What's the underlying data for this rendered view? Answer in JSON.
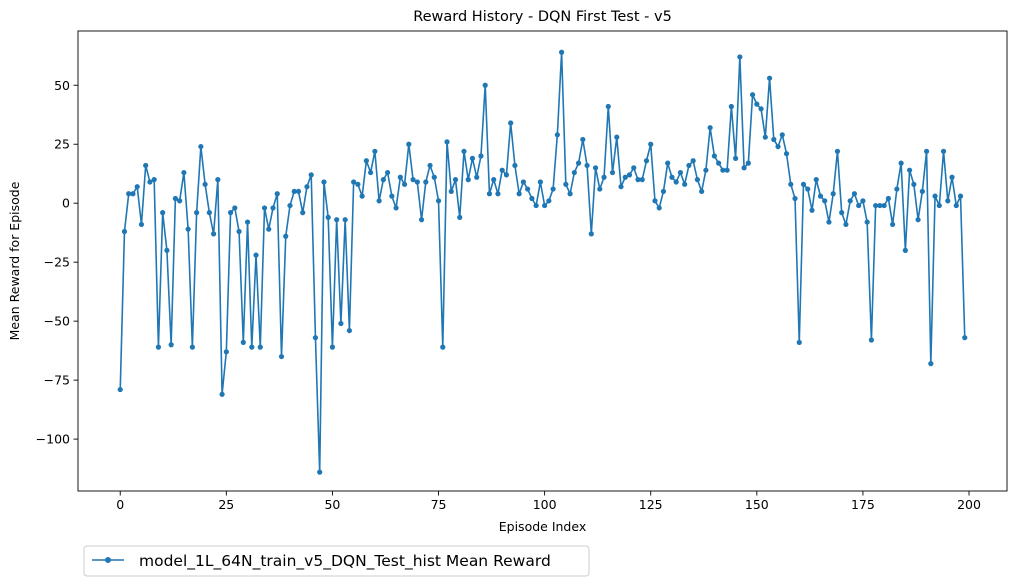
{
  "chart_data": {
    "type": "line",
    "title": "Reward History - DQN First Test - v5",
    "xlabel": "Episode Index",
    "ylabel": "Mean Reward for Episode",
    "xlim": [
      -9.95,
      208.95
    ],
    "ylim": [
      -122,
      73
    ],
    "xticks": [
      0,
      25,
      50,
      75,
      100,
      125,
      150,
      175,
      200
    ],
    "yticks": [
      -100,
      -75,
      -50,
      -25,
      0,
      25,
      50
    ],
    "ytick_labels": [
      "−100",
      "−75",
      "−50",
      "−25",
      "0",
      "25",
      "50"
    ],
    "grid": false,
    "legend_position": "below-left",
    "series": [
      {
        "name": "model_1L_64N_train_v5_DQN_Test_hist Mean Reward",
        "color": "#1f77b4",
        "marker": "circle",
        "x": [
          0,
          1,
          2,
          3,
          4,
          5,
          6,
          7,
          8,
          9,
          10,
          11,
          12,
          13,
          14,
          15,
          16,
          17,
          18,
          19,
          20,
          21,
          22,
          23,
          24,
          25,
          26,
          27,
          28,
          29,
          30,
          31,
          32,
          33,
          34,
          35,
          36,
          37,
          38,
          39,
          40,
          41,
          42,
          43,
          44,
          45,
          46,
          47,
          48,
          49,
          50,
          51,
          52,
          53,
          54,
          55,
          56,
          57,
          58,
          59,
          60,
          61,
          62,
          63,
          64,
          65,
          66,
          67,
          68,
          69,
          70,
          71,
          72,
          73,
          74,
          75,
          76,
          77,
          78,
          79,
          80,
          81,
          82,
          83,
          84,
          85,
          86,
          87,
          88,
          89,
          90,
          91,
          92,
          93,
          94,
          95,
          96,
          97,
          98,
          99,
          100,
          101,
          102,
          103,
          104,
          105,
          106,
          107,
          108,
          109,
          110,
          111,
          112,
          113,
          114,
          115,
          116,
          117,
          118,
          119,
          120,
          121,
          122,
          123,
          124,
          125,
          126,
          127,
          128,
          129,
          130,
          131,
          132,
          133,
          134,
          135,
          136,
          137,
          138,
          139,
          140,
          141,
          142,
          143,
          144,
          145,
          146,
          147,
          148,
          149,
          150,
          151,
          152,
          153,
          154,
          155,
          156,
          157,
          158,
          159,
          160,
          161,
          162,
          163,
          164,
          165,
          166,
          167,
          168,
          169,
          170,
          171,
          172,
          173,
          174,
          175,
          176,
          177,
          178,
          179,
          180,
          181,
          182,
          183,
          184,
          185,
          186,
          187,
          188,
          189,
          190,
          191,
          192,
          193,
          194,
          195,
          196,
          197,
          198,
          199
        ],
        "y": [
          -79,
          -12,
          4,
          4,
          7,
          -9,
          16,
          9,
          10,
          -61,
          -4,
          -20,
          -60,
          2,
          1,
          13,
          -11,
          -61,
          -4,
          24,
          8,
          -4,
          -13,
          10,
          -81,
          -63,
          -4,
          -2,
          -12,
          -59,
          -8,
          -61,
          -22,
          -61,
          -2,
          -11,
          -2,
          4,
          -65,
          -14,
          -1,
          5,
          5,
          -4,
          7,
          12,
          -57,
          -114,
          9,
          -6,
          -61,
          -7,
          -51,
          -7,
          -54,
          9,
          8,
          3,
          18,
          13,
          22,
          1,
          10,
          13,
          3,
          -2,
          11,
          8,
          25,
          10,
          9,
          -7,
          9,
          16,
          11,
          1,
          -61,
          26,
          5,
          10,
          -6,
          22,
          10,
          19,
          11,
          20,
          50,
          4,
          10,
          4,
          14,
          12,
          34,
          16,
          4,
          9,
          6,
          2,
          -1,
          9,
          -1,
          1,
          6,
          29,
          64,
          8,
          4,
          13,
          17,
          27,
          16,
          -13,
          15,
          6,
          11,
          41,
          13,
          28,
          7,
          11,
          12,
          15,
          10,
          10,
          18,
          25,
          1,
          -2,
          5,
          17,
          11,
          9,
          13,
          8,
          16,
          18,
          10,
          5,
          14,
          32,
          20,
          17,
          14,
          14,
          41,
          19,
          62,
          15,
          17,
          46,
          42,
          40,
          28,
          53,
          27,
          24,
          29,
          21,
          8,
          2,
          -59,
          8,
          6,
          -3,
          10,
          3,
          1,
          -8,
          4,
          22,
          -4,
          -9,
          1,
          4,
          -1,
          1,
          -8,
          -58,
          -1,
          -1,
          -1,
          2,
          -9,
          6,
          17,
          -20,
          14,
          8,
          -7,
          5,
          22,
          -68,
          3,
          -1,
          22,
          1,
          11,
          -1,
          3,
          -57
        ]
      }
    ]
  }
}
